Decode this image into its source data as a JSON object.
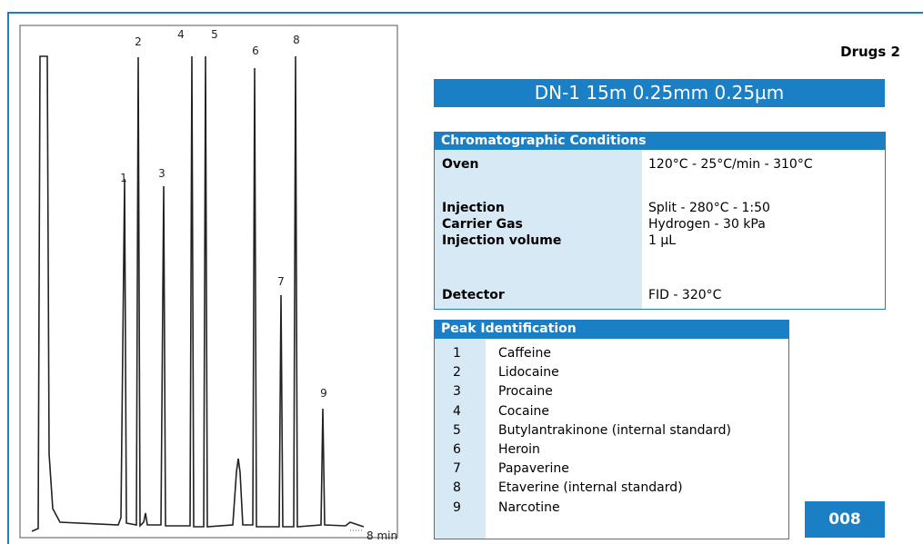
{
  "title": "Drugs 2",
  "column": "DN-1  15m  0.25mm  0.25µm",
  "chromatogram": {
    "peak_labels": [
      "1",
      "2",
      "3",
      "4",
      "5",
      "6",
      "7",
      "8",
      "9"
    ],
    "axis_label": "8 min"
  },
  "conditions": {
    "header": "Chromatographic Conditions",
    "rows": [
      [
        "Oven",
        "120°C - 25°C/min - 310°C"
      ],
      [
        "Injection",
        "Split - 280°C - 1:50"
      ],
      [
        "Carrier Gas",
        "Hydrogen - 30 kPa"
      ],
      [
        "Injection volume",
        "1 µL"
      ],
      [
        "Detector",
        "FID - 320°C"
      ]
    ]
  },
  "peaks": {
    "header": "Peak Identification",
    "rows": [
      [
        "1",
        "Caffeine"
      ],
      [
        "2",
        "Lidocaine"
      ],
      [
        "3",
        "Procaine"
      ],
      [
        "4",
        "Cocaine"
      ],
      [
        "5",
        "Butylantrakinone (internal standard)"
      ],
      [
        "6",
        "Heroin"
      ],
      [
        "7",
        "Papaverine"
      ],
      [
        "8",
        "Etaverine (internal standard)"
      ],
      [
        "9",
        "Narcotine"
      ]
    ]
  },
  "code": "008"
}
